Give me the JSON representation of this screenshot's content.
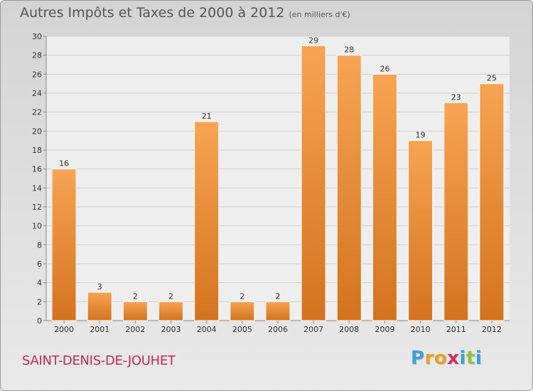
{
  "title": {
    "main": "Autres Impôts et Taxes de 2000 à 2012",
    "sub": "(en milliers d'€)"
  },
  "commune": "SAINT-DENIS-DE-JOUHET",
  "logo": {
    "text": "Proxiti",
    "letters": [
      {
        "ch": "P",
        "color": "#3aa0d8"
      },
      {
        "ch": "r",
        "color": "#e8a020"
      },
      {
        "ch": "o",
        "color": "#e8a020"
      },
      {
        "ch": "x",
        "color": "#d03060"
      },
      {
        "ch": "i",
        "color": "#3aa0d8"
      },
      {
        "ch": "t",
        "color": "#8cc43c"
      },
      {
        "ch": "i",
        "color": "#3aa0d8"
      }
    ]
  },
  "chart_data": {
    "type": "bar",
    "categories": [
      "2000",
      "2001",
      "2002",
      "2003",
      "2004",
      "2005",
      "2006",
      "2007",
      "2008",
      "2009",
      "2010",
      "2011",
      "2012"
    ],
    "values": [
      16,
      3,
      2,
      2,
      21,
      2,
      2,
      29,
      28,
      26,
      19,
      23,
      25
    ],
    "ylim": [
      0,
      30
    ],
    "yticks": [
      0,
      2,
      4,
      6,
      8,
      10,
      12,
      14,
      16,
      18,
      20,
      22,
      24,
      26,
      28,
      30
    ],
    "grid": true,
    "bar_color": "#f0903a"
  }
}
